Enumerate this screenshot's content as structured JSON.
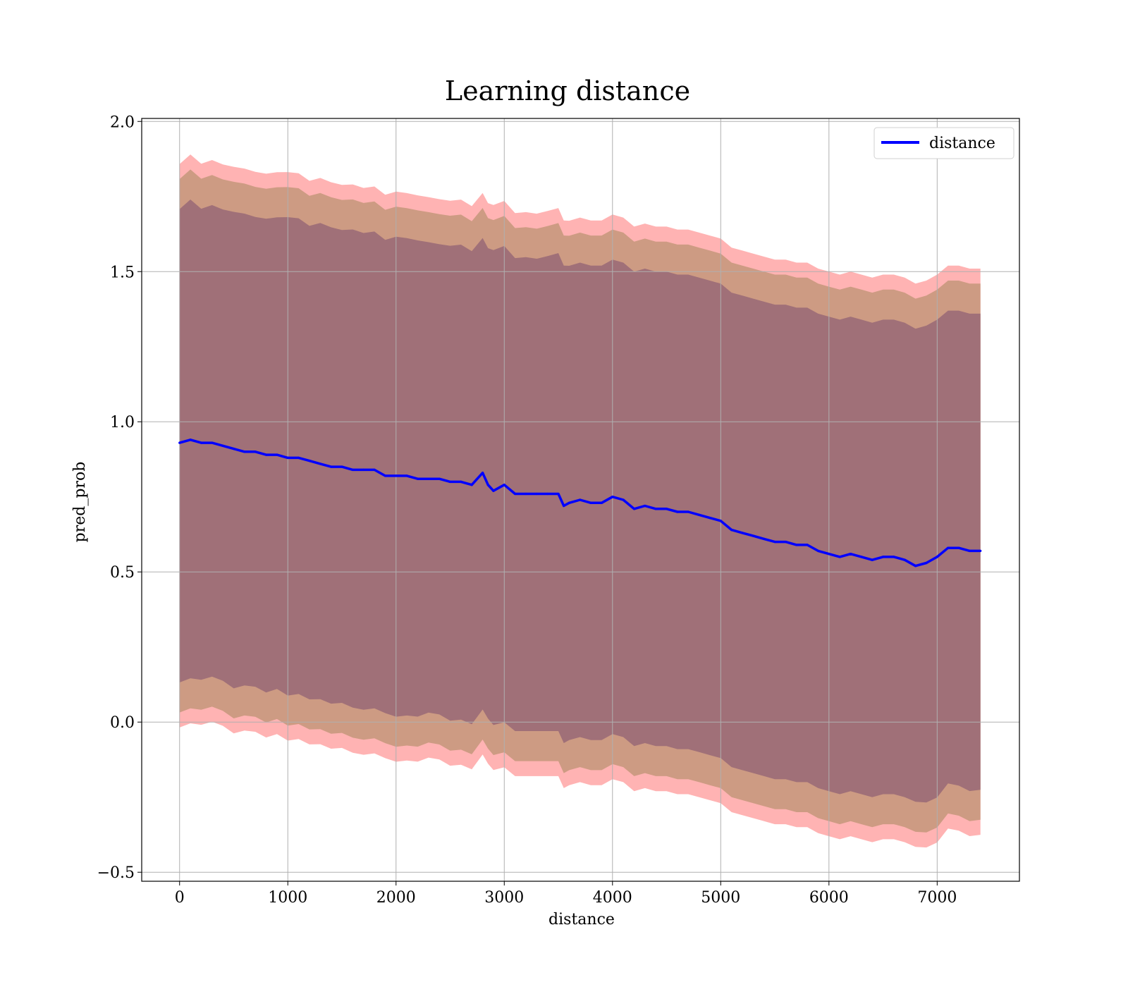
{
  "chart_data": {
    "type": "line",
    "title": "Learning distance",
    "xlabel": "distance",
    "ylabel": "pred_prob",
    "xlim": [
      -350,
      7760
    ],
    "ylim": [
      -0.53,
      2.01
    ],
    "xticks": [
      0,
      1000,
      2000,
      3000,
      4000,
      5000,
      6000,
      7000
    ],
    "yticks": [
      -0.5,
      0.0,
      0.5,
      1.0,
      1.5,
      2.0
    ],
    "ytick_labels": [
      "−0.5",
      "0.0",
      "0.5",
      "1.0",
      "1.5",
      "2.0"
    ],
    "grid": true,
    "legend": {
      "placement": "top-right",
      "entries": [
        "distance"
      ]
    },
    "colors": {
      "line": "#0000ff",
      "band_outer": "#ff9999",
      "band_mid": "#c4967a",
      "band_inner": "#a07078",
      "grid": "#b0b0b0"
    },
    "x": [
      0,
      100,
      200,
      300,
      400,
      500,
      600,
      700,
      800,
      900,
      1000,
      1100,
      1200,
      1300,
      1400,
      1500,
      1600,
      1700,
      1800,
      1900,
      2000,
      2100,
      2200,
      2300,
      2400,
      2500,
      2600,
      2700,
      2800,
      2850,
      2900,
      3000,
      3100,
      3200,
      3300,
      3400,
      3500,
      3550,
      3600,
      3700,
      3800,
      3900,
      4000,
      4100,
      4200,
      4300,
      4400,
      4500,
      4600,
      4700,
      4800,
      4900,
      5000,
      5100,
      5200,
      5300,
      5400,
      5500,
      5600,
      5700,
      5800,
      5900,
      6000,
      6100,
      6200,
      6300,
      6400,
      6500,
      6600,
      6700,
      6800,
      6900,
      7000,
      7100,
      7200,
      7300,
      7400
    ],
    "series": [
      {
        "name": "distance",
        "values": [
          0.93,
          0.94,
          0.93,
          0.93,
          0.92,
          0.91,
          0.9,
          0.9,
          0.89,
          0.89,
          0.88,
          0.88,
          0.87,
          0.86,
          0.85,
          0.85,
          0.84,
          0.84,
          0.84,
          0.82,
          0.82,
          0.82,
          0.81,
          0.81,
          0.81,
          0.8,
          0.8,
          0.79,
          0.83,
          0.79,
          0.77,
          0.79,
          0.76,
          0.76,
          0.76,
          0.76,
          0.76,
          0.72,
          0.73,
          0.74,
          0.73,
          0.73,
          0.75,
          0.74,
          0.71,
          0.72,
          0.71,
          0.71,
          0.7,
          0.7,
          0.69,
          0.68,
          0.67,
          0.64,
          0.63,
          0.62,
          0.61,
          0.6,
          0.6,
          0.59,
          0.59,
          0.57,
          0.56,
          0.55,
          0.56,
          0.55,
          0.54,
          0.55,
          0.55,
          0.54,
          0.52,
          0.53,
          0.55,
          0.58,
          0.58,
          0.57,
          0.57
        ]
      }
    ],
    "bands": [
      {
        "name": "outer",
        "offset": 0.94
      },
      {
        "name": "mid",
        "offset": 0.89
      },
      {
        "name": "inner",
        "offset": 0.79
      }
    ]
  }
}
